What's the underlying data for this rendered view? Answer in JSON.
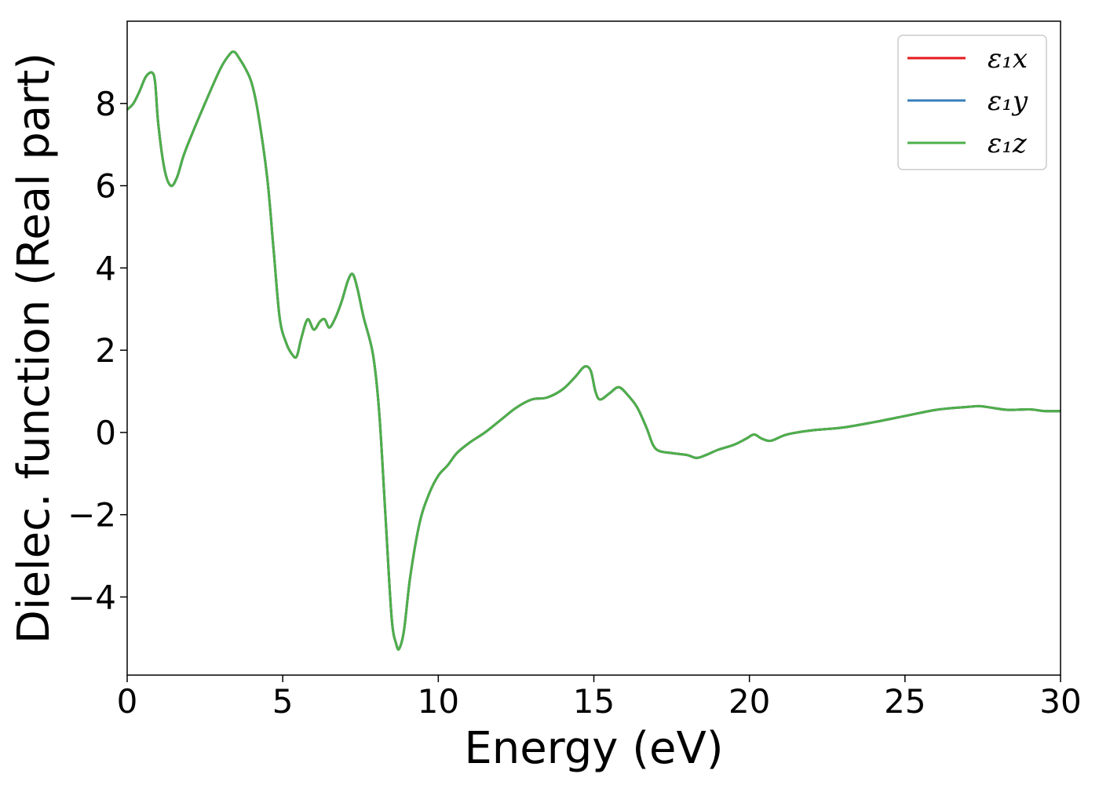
{
  "chart_data": {
    "type": "line",
    "title": "",
    "xlabel": "Energy (eV)",
    "ylabel": "Dielec. function (Real part)",
    "xlim": [
      0,
      30
    ],
    "ylim": [
      -5.9,
      10.0
    ],
    "xticks": [
      0,
      5,
      10,
      15,
      20,
      25,
      30
    ],
    "yticks": [
      -4,
      -2,
      0,
      2,
      4,
      6,
      8
    ],
    "ytick_labels": [
      "−4",
      "−2",
      "0",
      "2",
      "4",
      "6",
      "8"
    ],
    "grid": false,
    "legend_position": "top-right",
    "series": [
      {
        "name": "ε₁x",
        "color": "#e41a1c",
        "x": [
          0,
          0.2,
          0.4,
          0.6,
          0.8,
          0.9,
          1.0,
          1.2,
          1.4,
          1.6,
          1.8,
          2.0,
          2.5,
          3.0,
          3.3,
          3.45,
          3.6,
          3.8,
          4.0,
          4.2,
          4.5,
          4.7,
          4.9,
          5.1,
          5.3,
          5.45,
          5.6,
          5.8,
          6.0,
          6.2,
          6.35,
          6.5,
          6.7,
          6.9,
          7.1,
          7.25,
          7.4,
          7.6,
          7.9,
          8.1,
          8.3,
          8.5,
          8.65,
          8.75,
          8.9,
          9.1,
          9.4,
          9.7,
          10.0,
          10.3,
          10.6,
          11.0,
          11.5,
          12.0,
          12.5,
          13.0,
          13.5,
          14.0,
          14.4,
          14.7,
          14.9,
          15.05,
          15.2,
          15.5,
          15.8,
          16.1,
          16.4,
          16.7,
          16.9,
          17.1,
          17.5,
          18.0,
          18.3,
          18.6,
          19.0,
          19.5,
          19.9,
          20.15,
          20.4,
          20.7,
          21.2,
          22.0,
          23.0,
          24.0,
          25.0,
          26.0,
          27.0,
          27.4,
          27.8,
          28.3,
          29.0,
          29.5,
          30.0
        ],
        "values": [
          7.85,
          8.0,
          8.3,
          8.65,
          8.75,
          8.5,
          7.5,
          6.4,
          6.0,
          6.2,
          6.7,
          7.1,
          8.0,
          8.85,
          9.2,
          9.25,
          9.1,
          8.85,
          8.5,
          7.8,
          6.2,
          4.5,
          2.8,
          2.2,
          1.9,
          1.85,
          2.3,
          2.75,
          2.5,
          2.7,
          2.75,
          2.55,
          2.8,
          3.2,
          3.7,
          3.85,
          3.5,
          2.8,
          1.9,
          0.5,
          -2.0,
          -4.5,
          -5.15,
          -5.25,
          -4.8,
          -3.5,
          -2.2,
          -1.5,
          -1.05,
          -0.8,
          -0.5,
          -0.25,
          0.0,
          0.3,
          0.6,
          0.8,
          0.85,
          1.05,
          1.35,
          1.6,
          1.5,
          1.0,
          0.8,
          0.95,
          1.1,
          0.9,
          0.6,
          0.1,
          -0.3,
          -0.45,
          -0.5,
          -0.55,
          -0.62,
          -0.55,
          -0.42,
          -0.3,
          -0.15,
          -0.05,
          -0.15,
          -0.2,
          -0.05,
          0.05,
          0.12,
          0.25,
          0.4,
          0.55,
          0.62,
          0.64,
          0.6,
          0.55,
          0.56,
          0.52,
          0.52
        ]
      },
      {
        "name": "ε₁y",
        "color": "#377eb8",
        "x": [
          0,
          0.2,
          0.4,
          0.6,
          0.8,
          0.9,
          1.0,
          1.2,
          1.4,
          1.6,
          1.8,
          2.0,
          2.5,
          3.0,
          3.3,
          3.45,
          3.6,
          3.8,
          4.0,
          4.2,
          4.5,
          4.7,
          4.9,
          5.1,
          5.3,
          5.45,
          5.6,
          5.8,
          6.0,
          6.2,
          6.35,
          6.5,
          6.7,
          6.9,
          7.1,
          7.25,
          7.4,
          7.6,
          7.9,
          8.1,
          8.3,
          8.5,
          8.65,
          8.75,
          8.9,
          9.1,
          9.4,
          9.7,
          10.0,
          10.3,
          10.6,
          11.0,
          11.5,
          12.0,
          12.5,
          13.0,
          13.5,
          14.0,
          14.4,
          14.7,
          14.9,
          15.05,
          15.2,
          15.5,
          15.8,
          16.1,
          16.4,
          16.7,
          16.9,
          17.1,
          17.5,
          18.0,
          18.3,
          18.6,
          19.0,
          19.5,
          19.9,
          20.15,
          20.4,
          20.7,
          21.2,
          22.0,
          23.0,
          24.0,
          25.0,
          26.0,
          27.0,
          27.4,
          27.8,
          28.3,
          29.0,
          29.5,
          30.0
        ],
        "values": [
          7.85,
          8.0,
          8.3,
          8.65,
          8.75,
          8.5,
          7.5,
          6.4,
          6.0,
          6.2,
          6.7,
          7.1,
          8.0,
          8.85,
          9.2,
          9.25,
          9.1,
          8.85,
          8.5,
          7.8,
          6.2,
          4.5,
          2.8,
          2.2,
          1.9,
          1.85,
          2.3,
          2.75,
          2.5,
          2.7,
          2.75,
          2.55,
          2.8,
          3.2,
          3.7,
          3.85,
          3.5,
          2.8,
          1.9,
          0.5,
          -2.0,
          -4.5,
          -5.15,
          -5.25,
          -4.8,
          -3.5,
          -2.2,
          -1.5,
          -1.05,
          -0.8,
          -0.5,
          -0.25,
          0.0,
          0.3,
          0.6,
          0.8,
          0.85,
          1.05,
          1.35,
          1.6,
          1.5,
          1.0,
          0.8,
          0.95,
          1.1,
          0.9,
          0.6,
          0.1,
          -0.3,
          -0.45,
          -0.5,
          -0.55,
          -0.62,
          -0.55,
          -0.42,
          -0.3,
          -0.15,
          -0.05,
          -0.15,
          -0.2,
          -0.05,
          0.05,
          0.12,
          0.25,
          0.4,
          0.55,
          0.62,
          0.64,
          0.6,
          0.55,
          0.56,
          0.52,
          0.52
        ]
      },
      {
        "name": "ε₁z",
        "color": "#4daf4a",
        "x": [
          0,
          0.2,
          0.4,
          0.6,
          0.8,
          0.9,
          1.0,
          1.2,
          1.4,
          1.6,
          1.8,
          2.0,
          2.5,
          3.0,
          3.3,
          3.45,
          3.6,
          3.8,
          4.0,
          4.2,
          4.5,
          4.7,
          4.9,
          5.1,
          5.3,
          5.45,
          5.6,
          5.8,
          6.0,
          6.2,
          6.35,
          6.5,
          6.7,
          6.9,
          7.1,
          7.25,
          7.4,
          7.6,
          7.9,
          8.1,
          8.3,
          8.5,
          8.65,
          8.75,
          8.9,
          9.1,
          9.4,
          9.7,
          10.0,
          10.3,
          10.6,
          11.0,
          11.5,
          12.0,
          12.5,
          13.0,
          13.5,
          14.0,
          14.4,
          14.7,
          14.9,
          15.05,
          15.2,
          15.5,
          15.8,
          16.1,
          16.4,
          16.7,
          16.9,
          17.1,
          17.5,
          18.0,
          18.3,
          18.6,
          19.0,
          19.5,
          19.9,
          20.15,
          20.4,
          20.7,
          21.2,
          22.0,
          23.0,
          24.0,
          25.0,
          26.0,
          27.0,
          27.4,
          27.8,
          28.3,
          29.0,
          29.5,
          30.0
        ],
        "values": [
          7.85,
          8.0,
          8.3,
          8.65,
          8.75,
          8.5,
          7.5,
          6.4,
          6.0,
          6.2,
          6.7,
          7.1,
          8.0,
          8.85,
          9.2,
          9.25,
          9.1,
          8.85,
          8.5,
          7.8,
          6.2,
          4.5,
          2.8,
          2.2,
          1.9,
          1.85,
          2.3,
          2.75,
          2.5,
          2.7,
          2.75,
          2.55,
          2.8,
          3.2,
          3.7,
          3.85,
          3.5,
          2.8,
          1.9,
          0.5,
          -2.0,
          -4.5,
          -5.15,
          -5.25,
          -4.8,
          -3.5,
          -2.2,
          -1.5,
          -1.05,
          -0.8,
          -0.5,
          -0.25,
          0.0,
          0.3,
          0.6,
          0.8,
          0.85,
          1.05,
          1.35,
          1.6,
          1.5,
          1.0,
          0.8,
          0.95,
          1.1,
          0.9,
          0.6,
          0.1,
          -0.3,
          -0.45,
          -0.5,
          -0.55,
          -0.62,
          -0.55,
          -0.42,
          -0.3,
          -0.15,
          -0.05,
          -0.15,
          -0.2,
          -0.05,
          0.05,
          0.12,
          0.25,
          0.4,
          0.55,
          0.62,
          0.64,
          0.6,
          0.55,
          0.56,
          0.52,
          0.52
        ]
      }
    ]
  }
}
